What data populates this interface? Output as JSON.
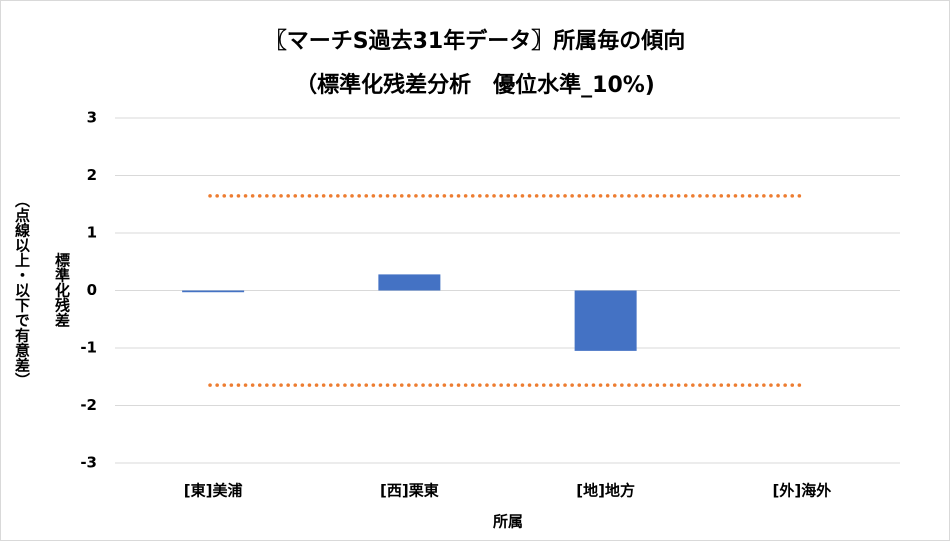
{
  "chart_data": {
    "type": "bar",
    "title": [
      "〖マーチS過去31年データ〗所属毎の傾向",
      "（標準化残差分析　優位水準_10%)"
    ],
    "x_label": "所属",
    "y_label": [
      "標準化残差",
      "（点線以上・以下で有意差）"
    ],
    "categories": [
      "[東]美浦",
      "[西]栗東",
      "[地]地方",
      "[外]海外"
    ],
    "values": [
      -0.03,
      0.28,
      -1.05,
      0
    ],
    "color": "#4472c4",
    "reference_lines": [
      1.645,
      -1.645
    ],
    "reference_color": "#ed7d31",
    "ylim": [
      -3,
      3
    ],
    "yticks": [
      -3,
      -2,
      -1,
      0,
      1,
      2,
      3
    ],
    "grid": true
  }
}
